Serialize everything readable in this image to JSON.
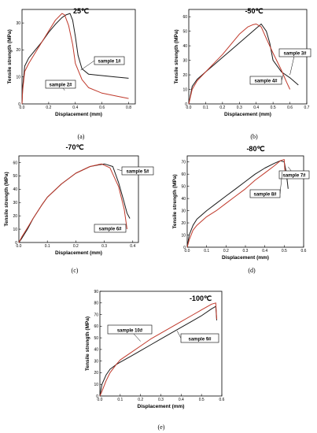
{
  "colors": {
    "black_series": "#1a1a1a",
    "red_series": "#c0392b"
  },
  "chart_data": [
    {
      "type": "line",
      "panel": "(a)",
      "title": "25℃",
      "xlabel": "Displacement (mm)",
      "ylabel": "Tensile strength (MPa)",
      "xlim": [
        0,
        0.85
      ],
      "ylim": [
        0,
        35
      ],
      "xticks": [
        "0.0",
        "0.2",
        "0.4",
        "0.6",
        "0.8"
      ],
      "yticks": [
        "0",
        "10",
        "20",
        "30"
      ],
      "series": [
        {
          "name": "sample 1#",
          "color": "black",
          "x": [
            0,
            0.005,
            0.02,
            0.05,
            0.1,
            0.15,
            0.2,
            0.25,
            0.3,
            0.33,
            0.36,
            0.38,
            0.4,
            0.42,
            0.45,
            0.5,
            0.6,
            0.7,
            0.8
          ],
          "y": [
            0,
            6,
            14,
            17,
            20,
            23,
            26.5,
            29.5,
            32,
            33,
            33.5,
            31,
            25,
            18,
            13,
            11,
            10.5,
            10,
            9.5
          ]
        },
        {
          "name": "sample 2#",
          "color": "red",
          "x": [
            0,
            0.005,
            0.02,
            0.05,
            0.1,
            0.15,
            0.2,
            0.25,
            0.3,
            0.32,
            0.35,
            0.38,
            0.4,
            0.45,
            0.5,
            0.6,
            0.7,
            0.8
          ],
          "y": [
            0,
            5,
            12,
            15,
            19,
            23,
            27,
            31,
            33.5,
            33,
            29,
            22,
            15,
            9,
            6,
            4,
            3,
            2
          ]
        }
      ],
      "annotations": [
        {
          "text": "sample 1#"
        },
        {
          "text": "sample 2#"
        }
      ]
    },
    {
      "type": "line",
      "panel": "(b)",
      "title": "-50℃",
      "xlabel": "Displacement (mm)",
      "ylabel": "Tensile strength (MPa)",
      "xlim": [
        0,
        0.7
      ],
      "ylim": [
        0,
        65
      ],
      "xticks": [
        "0.0",
        "0.1",
        "0.2",
        "0.3",
        "0.4",
        "0.5",
        "0.6",
        "0.7"
      ],
      "yticks": [
        "0",
        "10",
        "20",
        "30",
        "40",
        "50",
        "60"
      ],
      "series": [
        {
          "name": "sample 3#",
          "color": "black",
          "x": [
            0,
            0.02,
            0.05,
            0.1,
            0.15,
            0.2,
            0.25,
            0.3,
            0.35,
            0.4,
            0.43,
            0.46,
            0.48,
            0.5,
            0.55,
            0.6,
            0.65
          ],
          "y": [
            0,
            12,
            17,
            22,
            27,
            32,
            37,
            42,
            47,
            52,
            55,
            50,
            42,
            30,
            22,
            18,
            13
          ]
        },
        {
          "name": "sample 4#",
          "color": "red",
          "x": [
            0,
            0.02,
            0.05,
            0.1,
            0.15,
            0.2,
            0.25,
            0.3,
            0.35,
            0.38,
            0.4,
            0.43,
            0.46,
            0.5,
            0.55,
            0.58,
            0.6
          ],
          "y": [
            0,
            10,
            16,
            22,
            28,
            34,
            41,
            48,
            53,
            54.5,
            55,
            53,
            45,
            35,
            23,
            15,
            10
          ]
        }
      ],
      "annotations": [
        {
          "text": "sample 3#"
        },
        {
          "text": "sample 4#"
        }
      ]
    },
    {
      "type": "line",
      "panel": "(c)",
      "title": "-70℃",
      "xlabel": "Displacement (mm)",
      "ylabel": "Tensile strength (MPa)",
      "xlim": [
        0,
        0.42
      ],
      "ylim": [
        0,
        65
      ],
      "xticks": [
        "0.0",
        "0.1",
        "0.2",
        "0.3",
        "0.4"
      ],
      "yticks": [
        "0",
        "10",
        "20",
        "30",
        "40",
        "50",
        "60"
      ],
      "series": [
        {
          "name": "sample 5#",
          "color": "black",
          "x": [
            0,
            0.01,
            0.03,
            0.05,
            0.08,
            0.1,
            0.15,
            0.2,
            0.25,
            0.3,
            0.33,
            0.35,
            0.37,
            0.38,
            0.39
          ],
          "y": [
            0,
            3,
            10,
            18,
            28,
            34,
            44,
            52,
            57,
            59,
            57,
            45,
            30,
            22,
            18
          ]
        },
        {
          "name": "sample 6#",
          "color": "red",
          "x": [
            0,
            0.01,
            0.03,
            0.05,
            0.08,
            0.1,
            0.15,
            0.2,
            0.25,
            0.29,
            0.32,
            0.35,
            0.37,
            0.38
          ],
          "y": [
            0,
            4,
            11,
            18,
            28,
            34,
            44,
            52,
            57,
            59,
            56,
            42,
            25,
            10
          ]
        }
      ],
      "annotations": [
        {
          "text": "sample 5#"
        },
        {
          "text": "sample 6#"
        }
      ]
    },
    {
      "type": "line",
      "panel": "(d)",
      "title": "-80℃",
      "xlabel": "Displacement (mm)",
      "ylabel": "Tensile strength (MPa)",
      "xlim": [
        0,
        0.6
      ],
      "ylim": [
        0,
        75
      ],
      "xticks": [
        "0.0",
        "0.1",
        "0.2",
        "0.3",
        "0.4",
        "0.5",
        "0.6"
      ],
      "yticks": [
        "0",
        "10",
        "20",
        "30",
        "40",
        "50",
        "60",
        "70"
      ],
      "series": [
        {
          "name": "sample 7#",
          "color": "black",
          "x": [
            0,
            0.01,
            0.03,
            0.05,
            0.1,
            0.15,
            0.2,
            0.25,
            0.3,
            0.35,
            0.4,
            0.45,
            0.48,
            0.5,
            0.51,
            0.52
          ],
          "y": [
            0,
            10,
            18,
            23,
            30,
            36,
            42,
            48,
            54,
            60,
            65,
            69,
            71,
            70,
            62,
            48
          ]
        },
        {
          "name": "sample 8#",
          "color": "red",
          "x": [
            0,
            0.01,
            0.03,
            0.05,
            0.1,
            0.15,
            0.2,
            0.25,
            0.3,
            0.35,
            0.4,
            0.45,
            0.48,
            0.5,
            0.505
          ],
          "y": [
            0,
            6,
            14,
            18,
            25,
            30,
            36,
            42,
            48,
            55,
            61,
            67,
            71,
            72,
            58
          ]
        }
      ],
      "annotations": [
        {
          "text": "sample 7#"
        },
        {
          "text": "sample 8#"
        }
      ]
    },
    {
      "type": "line",
      "panel": "(e)",
      "title": "-100℃",
      "xlabel": "Displacement (mm)",
      "ylabel": "Tensile strength (MPa)",
      "xlim": [
        0,
        0.6
      ],
      "ylim": [
        0,
        90
      ],
      "xticks": [
        "0.0",
        "0.1",
        "0.2",
        "0.3",
        "0.4",
        "0.5",
        "0.6"
      ],
      "yticks": [
        "0",
        "10",
        "20",
        "30",
        "40",
        "50",
        "60",
        "70",
        "80",
        "90"
      ],
      "series": [
        {
          "name": "sample 9#",
          "color": "black",
          "x": [
            0,
            0.01,
            0.03,
            0.05,
            0.08,
            0.1,
            0.15,
            0.2,
            0.25,
            0.3,
            0.35,
            0.4,
            0.45,
            0.5,
            0.55,
            0.57,
            0.575
          ],
          "y": [
            0,
            10,
            18,
            23,
            27,
            29,
            34,
            39,
            44,
            49,
            54,
            59,
            64,
            69,
            75,
            77,
            65
          ]
        },
        {
          "name": "sample 10#",
          "color": "red",
          "x": [
            0,
            0.01,
            0.03,
            0.05,
            0.08,
            0.1,
            0.15,
            0.2,
            0.25,
            0.3,
            0.35,
            0.4,
            0.45,
            0.5,
            0.55,
            0.57,
            0.575
          ],
          "y": [
            0,
            4,
            13,
            20,
            27,
            31,
            37,
            43,
            49,
            54,
            59,
            64,
            69,
            74,
            79,
            80,
            66
          ]
        }
      ],
      "annotations": [
        {
          "text": "sample 10#"
        },
        {
          "text": "sample 9#"
        }
      ]
    }
  ]
}
